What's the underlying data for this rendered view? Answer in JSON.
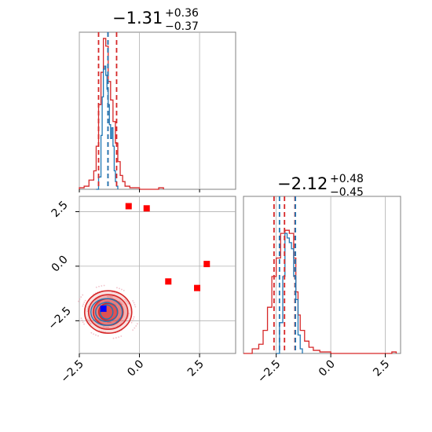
{
  "colors": {
    "blue": "#1f77b4",
    "red": "#d62728",
    "grid": "#b0b0b0",
    "axis": "#808080"
  },
  "chart_data": {
    "type": "corner",
    "grid": true,
    "ranges": {
      "p0": [
        -2.5,
        4.0
      ],
      "p1": [
        -4.0,
        3.2
      ]
    },
    "ticks": {
      "x0": [
        {
          "v": -2.5,
          "label": "−2.5"
        },
        {
          "v": 0.0,
          "label": "0.0"
        },
        {
          "v": 2.5,
          "label": "2.5"
        }
      ],
      "y1": [
        {
          "v": 2.5,
          "label": "2.5"
        },
        {
          "v": 0.0,
          "label": "0.0"
        },
        {
          "v": -2.5,
          "label": "−2.5"
        }
      ],
      "x1": [
        {
          "v": -2.5,
          "label": "−2.5"
        },
        {
          "v": 0.0,
          "label": "0.0"
        },
        {
          "v": 2.5,
          "label": "2.5"
        }
      ]
    },
    "titles": [
      {
        "value": "−1.31",
        "upper": "+0.36",
        "lower": "−0.37"
      },
      {
        "value": "−2.12",
        "upper": "+0.48",
        "lower": "−0.45"
      }
    ],
    "hist_p0": {
      "quantiles_red": [
        -1.7,
        -1.31,
        -0.95
      ],
      "quantiles_blue": [
        -1.31
      ],
      "red_bins_x": [
        -2.5,
        -2.3,
        -2.1,
        -1.9,
        -1.8,
        -1.7,
        -1.6,
        -1.5,
        -1.4,
        -1.3,
        -1.2,
        -1.1,
        -1.0,
        -0.9,
        -0.8,
        -0.7,
        -0.6,
        -0.4,
        0.0,
        0.5,
        0.8,
        1.0
      ],
      "red_counts": [
        0.01,
        0.02,
        0.06,
        0.12,
        0.28,
        0.55,
        0.76,
        0.98,
        0.93,
        0.7,
        0.58,
        0.44,
        0.3,
        0.18,
        0.09,
        0.05,
        0.02,
        0.01,
        0.0,
        0.0,
        0.01,
        0.0
      ],
      "blue_bins_x": [
        -1.8,
        -1.7,
        -1.6,
        -1.55,
        -1.5,
        -1.45,
        -1.4,
        -1.35,
        -1.3,
        -1.25,
        -1.2,
        -1.15,
        -1.1,
        -1.05,
        -1.0,
        -0.95,
        -0.9
      ],
      "blue_counts": [
        0.0,
        0.08,
        0.35,
        0.6,
        0.78,
        0.8,
        0.74,
        0.65,
        0.55,
        0.42,
        0.33,
        0.4,
        0.28,
        0.12,
        0.05,
        0.02,
        0.0
      ]
    },
    "hist_p1": {
      "quantiles_red": [
        -2.6,
        -2.12,
        -1.64
      ],
      "quantiles_blue": [
        -2.35,
        -1.62
      ],
      "red_bins_x": [
        -4.0,
        -3.6,
        -3.3,
        -3.1,
        -2.9,
        -2.7,
        -2.5,
        -2.3,
        -2.1,
        -1.9,
        -1.7,
        -1.6,
        -1.5,
        -1.4,
        -1.2,
        -1.0,
        -0.8,
        -0.5,
        0.0,
        2.0,
        2.8,
        3.0
      ],
      "red_counts": [
        0.0,
        0.03,
        0.06,
        0.15,
        0.3,
        0.5,
        0.62,
        0.78,
        0.8,
        0.78,
        0.62,
        0.4,
        0.25,
        0.15,
        0.08,
        0.04,
        0.02,
        0.01,
        0.0,
        0.0,
        0.01,
        0.0
      ],
      "blue_bins_x": [
        -2.5,
        -2.35,
        -2.2,
        -2.1,
        -2.0,
        -1.9,
        -1.8,
        -1.7,
        -1.6,
        -1.5,
        -1.4,
        -1.3
      ],
      "blue_counts": [
        0.0,
        0.2,
        0.5,
        0.78,
        0.75,
        0.72,
        0.68,
        0.5,
        0.35,
        0.12,
        0.03,
        0.0
      ]
    },
    "scatter": {
      "red_squares": [
        {
          "x": -0.45,
          "y": 2.75
        },
        {
          "x": 0.3,
          "y": 2.65
        },
        {
          "x": 2.8,
          "y": 0.1
        },
        {
          "x": 1.2,
          "y": -0.7
        },
        {
          "x": 2.4,
          "y": -1.0
        }
      ],
      "blue_square": {
        "x": -1.5,
        "y": -1.95
      },
      "contour_center": {
        "x": -1.3,
        "y": -2.1
      }
    }
  }
}
